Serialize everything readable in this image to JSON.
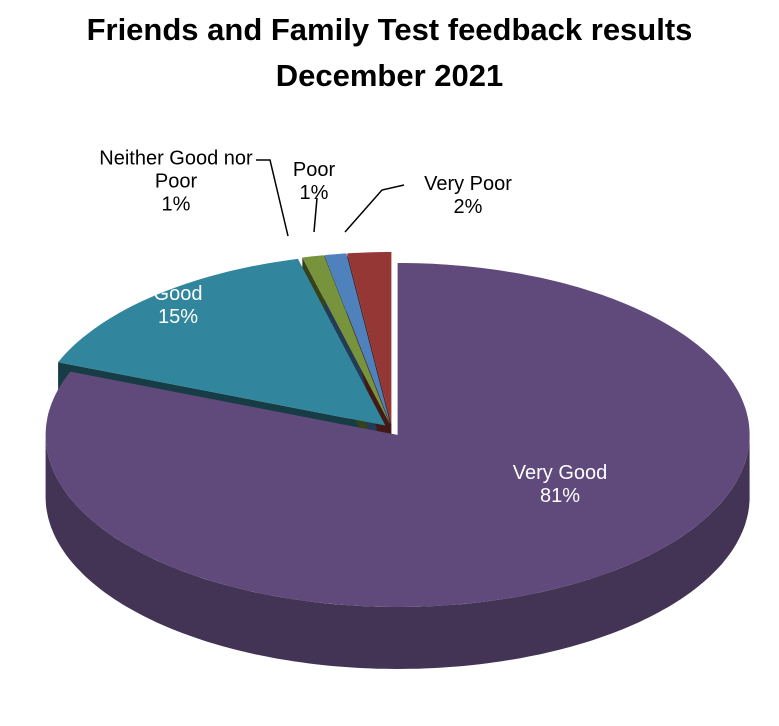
{
  "chart_data": {
    "type": "pie3d",
    "title": "Friends and Family Test feedback results",
    "subtitle": "December 2021",
    "categories": [
      "Very Good",
      "Good",
      "Neither Good nor Poor",
      "Poor",
      "Very Poor"
    ],
    "values": [
      81,
      15,
      1,
      1,
      2
    ],
    "value_labels": [
      "81%",
      "15%",
      "1%",
      "1%",
      "2%"
    ],
    "colors": [
      "#604a7b",
      "#31859c",
      "#77933c",
      "#4f81bd",
      "#953735"
    ]
  }
}
